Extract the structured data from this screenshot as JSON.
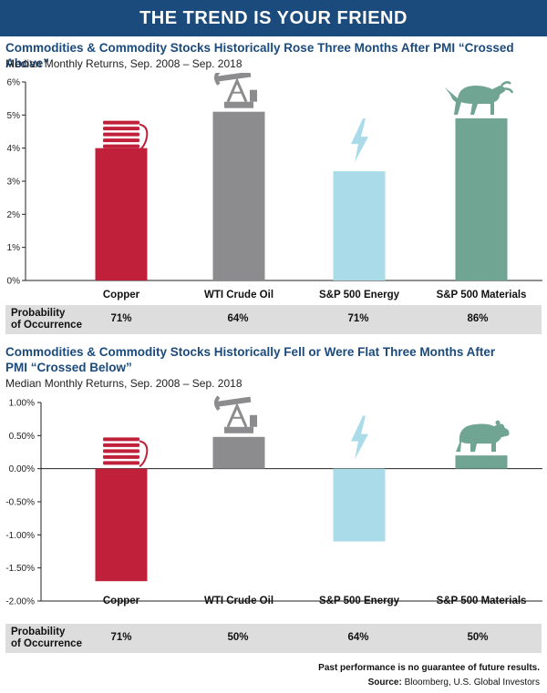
{
  "header": {
    "title": "THE TREND IS YOUR FRIEND"
  },
  "chart_data": [
    {
      "type": "bar",
      "title": "Commodities & Commodity Stocks Historically Rose Three Months After PMI “Crossed Above”",
      "subtitle": "Median Monthly Returns, Sep. 2008 – Sep. 2018",
      "categories": [
        "Copper",
        "WTI Crude Oil",
        "S&P 500 Energy",
        "S&P 500 Materials"
      ],
      "values": [
        4.0,
        5.1,
        3.3,
        4.9
      ],
      "ylim": [
        0,
        6
      ],
      "yticks": [
        0,
        1,
        2,
        3,
        4,
        5,
        6
      ],
      "ytick_labels": [
        "0%",
        "1%",
        "2%",
        "3%",
        "4%",
        "5%",
        "6%"
      ],
      "icons": [
        "spool-icon",
        "oil-pump-icon",
        "lightning-icon",
        "bull-icon"
      ],
      "probability": {
        "label_line1": "Probability",
        "label_line2": "of Occurrence",
        "values": [
          "71%",
          "64%",
          "71%",
          "86%"
        ]
      }
    },
    {
      "type": "bar",
      "title": "Commodities & Commodity Stocks Historically Fell or Were Flat Three Months After PMI “Crossed Below”",
      "subtitle": "Median Monthly Returns, Sep. 2008 – Sep. 2018",
      "categories": [
        "Copper",
        "WTI Crude Oil",
        "S&P 500 Energy",
        "S&P 500 Materials"
      ],
      "values": [
        -1.7,
        0.48,
        -1.1,
        0.2
      ],
      "ylim": [
        -2.0,
        1.0
      ],
      "yticks": [
        -2.0,
        -1.5,
        -1.0,
        -0.5,
        0.0,
        0.5,
        1.0
      ],
      "ytick_labels": [
        "-2.00%",
        "-1.50%",
        "-1.00%",
        "-0.50%",
        "0.00%",
        "0.50%",
        "1.00%"
      ],
      "icons": [
        "spool-icon",
        "oil-pump-icon",
        "lightning-icon",
        "bear-icon"
      ],
      "probability": {
        "label_line1": "Probability",
        "label_line2": "of Occurrence",
        "values": [
          "71%",
          "50%",
          "64%",
          "50%"
        ]
      }
    }
  ],
  "colors": [
    "#c0203a",
    "#8c8c8e",
    "#a9dce8",
    "#6fa592"
  ],
  "footer": {
    "disclaimer": "Past performance is no guarantee of future results.",
    "source_label": "Source:",
    "source_text": "Bloomberg, U.S. Global Investors"
  }
}
